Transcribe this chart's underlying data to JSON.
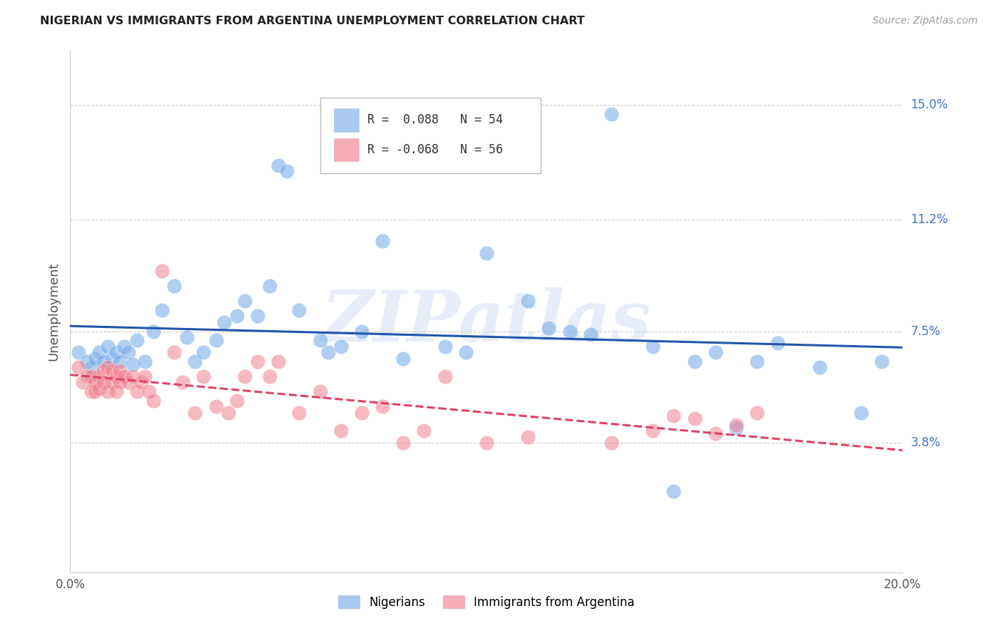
{
  "title": "NIGERIAN VS IMMIGRANTS FROM ARGENTINA UNEMPLOYMENT CORRELATION CHART",
  "source": "Source: ZipAtlas.com",
  "ylabel": "Unemployment",
  "ytick_labels": [
    "15.0%",
    "11.2%",
    "7.5%",
    "3.8%"
  ],
  "ytick_values": [
    0.15,
    0.112,
    0.075,
    0.038
  ],
  "xmin": 0.0,
  "xmax": 0.2,
  "ymin": -0.005,
  "ymax": 0.168,
  "legend_r1_text": "R =  0.088   N = 54",
  "legend_r2_text": "R = -0.068   N = 56",
  "color_blue": "#7aaee8",
  "color_pink": "#f08090",
  "trendline_blue_color": "#2255aa",
  "trendline_pink_color": "#dd4466",
  "watermark": "ZIPatlas",
  "blue_scatter_x": [
    0.002,
    0.004,
    0.005,
    0.006,
    0.007,
    0.008,
    0.009,
    0.01,
    0.011,
    0.012,
    0.013,
    0.014,
    0.015,
    0.016,
    0.018,
    0.02,
    0.022,
    0.025,
    0.028,
    0.03,
    0.032,
    0.035,
    0.037,
    0.04,
    0.042,
    0.045,
    0.048,
    0.05,
    0.052,
    0.055,
    0.06,
    0.062,
    0.065,
    0.07,
    0.075,
    0.08,
    0.09,
    0.095,
    0.1,
    0.11,
    0.115,
    0.12,
    0.125,
    0.13,
    0.14,
    0.145,
    0.15,
    0.155,
    0.16,
    0.165,
    0.17,
    0.18,
    0.19,
    0.195
  ],
  "blue_scatter_y": [
    0.068,
    0.065,
    0.063,
    0.066,
    0.068,
    0.065,
    0.07,
    0.066,
    0.068,
    0.065,
    0.07,
    0.068,
    0.064,
    0.072,
    0.065,
    0.075,
    0.082,
    0.09,
    0.073,
    0.065,
    0.068,
    0.072,
    0.078,
    0.08,
    0.085,
    0.08,
    0.09,
    0.13,
    0.128,
    0.082,
    0.072,
    0.068,
    0.07,
    0.075,
    0.105,
    0.066,
    0.07,
    0.068,
    0.101,
    0.085,
    0.076,
    0.075,
    0.074,
    0.147,
    0.07,
    0.022,
    0.065,
    0.068,
    0.043,
    0.065,
    0.071,
    0.063,
    0.048,
    0.065
  ],
  "pink_scatter_x": [
    0.002,
    0.003,
    0.004,
    0.005,
    0.005,
    0.006,
    0.006,
    0.007,
    0.007,
    0.008,
    0.008,
    0.009,
    0.009,
    0.01,
    0.01,
    0.011,
    0.011,
    0.012,
    0.012,
    0.013,
    0.014,
    0.015,
    0.016,
    0.017,
    0.018,
    0.019,
    0.02,
    0.022,
    0.025,
    0.027,
    0.03,
    0.032,
    0.035,
    0.038,
    0.04,
    0.042,
    0.045,
    0.048,
    0.05,
    0.055,
    0.06,
    0.065,
    0.07,
    0.075,
    0.08,
    0.085,
    0.09,
    0.1,
    0.11,
    0.13,
    0.14,
    0.145,
    0.15,
    0.155,
    0.16,
    0.165
  ],
  "pink_scatter_y": [
    0.063,
    0.058,
    0.06,
    0.055,
    0.06,
    0.055,
    0.058,
    0.06,
    0.056,
    0.062,
    0.058,
    0.063,
    0.055,
    0.062,
    0.058,
    0.06,
    0.055,
    0.058,
    0.062,
    0.06,
    0.058,
    0.06,
    0.055,
    0.058,
    0.06,
    0.055,
    0.052,
    0.095,
    0.068,
    0.058,
    0.048,
    0.06,
    0.05,
    0.048,
    0.052,
    0.06,
    0.065,
    0.06,
    0.065,
    0.048,
    0.055,
    0.042,
    0.048,
    0.05,
    0.038,
    0.042,
    0.06,
    0.038,
    0.04,
    0.038,
    0.042,
    0.047,
    0.046,
    0.041,
    0.044,
    0.048
  ]
}
